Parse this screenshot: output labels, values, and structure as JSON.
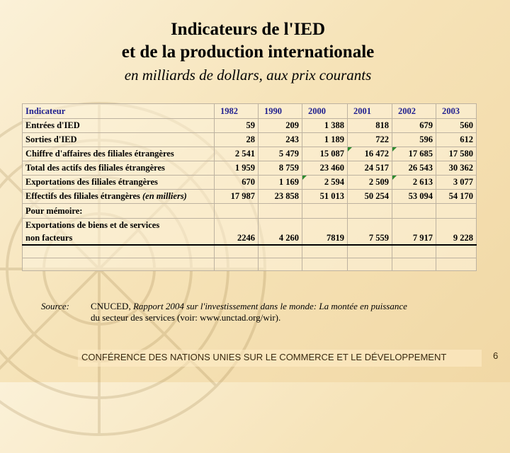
{
  "title": {
    "line1": "Indicateurs de l'IED",
    "line2": "et de la production internationale"
  },
  "subtitle": "en milliards de dollars, aux prix courants",
  "table": {
    "header": [
      "Indicateur",
      "1982",
      "1990",
      "2000",
      "2001",
      "2002",
      "2003"
    ],
    "rows": [
      {
        "label": "Entrées d'IED",
        "values": [
          "59",
          "209",
          "1 388",
          "818",
          "679",
          "560"
        ]
      },
      {
        "label": "Sorties d'IED",
        "values": [
          "28",
          "243",
          "1 189",
          "722",
          "596",
          "612"
        ]
      },
      {
        "label": "Chiffre d'affaires des filiales étrangères",
        "values": [
          "2 541",
          "5 479",
          "15 087",
          "16 472",
          "17 685",
          "17 580"
        ]
      },
      {
        "label": "Total des actifs des filiales étrangères",
        "values": [
          "1 959",
          "8 759",
          "23 460",
          "24 517",
          "26 543",
          "30 362"
        ]
      },
      {
        "label": "Exportations des filiales étrangères",
        "values": [
          "670",
          "1 169",
          "2 594",
          "2 509",
          "2 613",
          "3 077"
        ]
      },
      {
        "label": "Effectifs des filiales étrangères",
        "label_italic": "(en milliers)",
        "values": [
          "17 987",
          "23 858",
          "51 013",
          "50 254",
          "53 094",
          "54 170"
        ]
      }
    ],
    "memo_label": "Pour mémoire:",
    "exports": {
      "label_line1": "Exportations de biens et de services",
      "label_line2": "non facteurs",
      "values": [
        "2246",
        "4 260",
        "7819",
        "7 559",
        "7 917",
        "9 228"
      ]
    }
  },
  "source": {
    "label": "Source:",
    "org": "CNUCED, ",
    "report": "Rapport 2004 sur l'investissement dans le monde:  La montée en puissance",
    "line2": "du secteur des services (voir:  www.unctad.org/wir)."
  },
  "footer": "CONFÉRENCE DES NATIONS UNIES SUR LE COMMERCE ET LE DÉVELOPPEMENT",
  "page_number": "6",
  "colors": {
    "header_text": "#1f1f8f",
    "corner_marker": "#2e8b2e",
    "background": "#f6e3b8"
  }
}
